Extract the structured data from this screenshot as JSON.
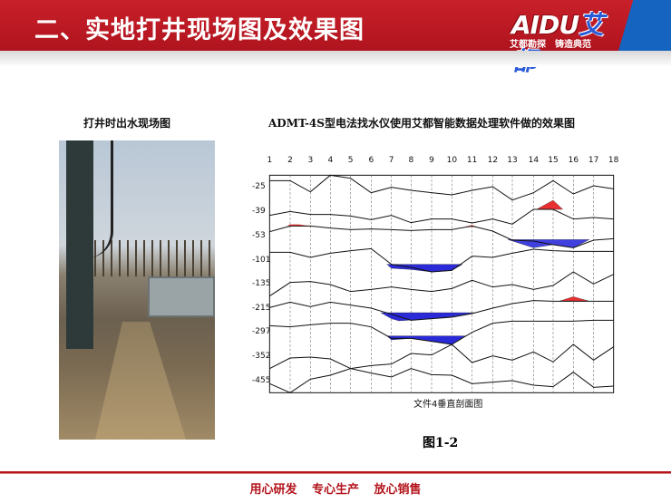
{
  "header": {
    "title": "二、实地打井现场图及效果图",
    "logo_text": "AIDU艾都",
    "logo_slogan": "艾都勘探 铸造典范"
  },
  "left": {
    "caption": "打井时出水现场图"
  },
  "right": {
    "caption": "ADMT-4S型电法找水仪使用艾都智能数据处理软件做的效果图",
    "figure_label": "图1-2"
  },
  "chart_data": {
    "type": "line",
    "title": "文件4垂直剖面图",
    "x_ticks": [
      "1",
      "2",
      "3",
      "4",
      "5",
      "6",
      "7",
      "8",
      "9",
      "10",
      "11",
      "12",
      "13",
      "14",
      "15",
      "16",
      "17",
      "18"
    ],
    "y_ticks": [
      "-25",
      "-39",
      "-53",
      "-101",
      "-135",
      "-215",
      "-297",
      "-352",
      "-455"
    ],
    "grid": "vertical dashed",
    "colors": {
      "positive_fill": "#e83030",
      "negative_fill": "#2a2ad8"
    }
  },
  "footer": {
    "slogan": "用心研发 专心生产 放心销售"
  },
  "colors": {
    "brand_red": "#b3141c",
    "brand_blue": "#1565c0"
  }
}
